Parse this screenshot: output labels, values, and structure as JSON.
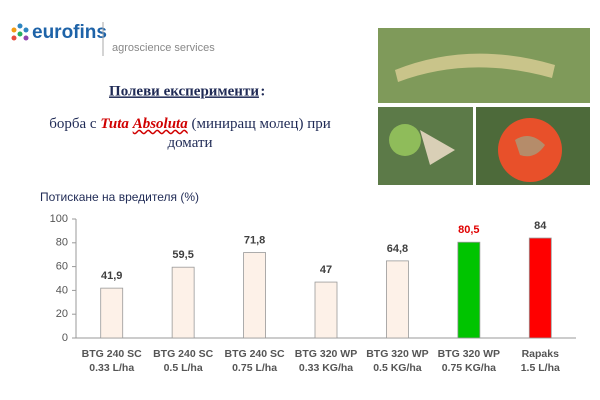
{
  "header": {
    "brand": "eurofins",
    "division": "agroscience services",
    "title": "Полеви експерименти",
    "title_suffix": ":",
    "subtitle": [
      "борба с ",
      "Tuta",
      "Absoluta",
      " (миниращ молец) при домати"
    ]
  },
  "chart_data": {
    "type": "bar",
    "title": "Потискане на вредителя (%)",
    "categories": [
      [
        "BTG 240 SC",
        "0.33 L/ha"
      ],
      [
        "BTG 240 SC",
        "0.5 L/ha"
      ],
      [
        "BTG 240 SC",
        "0.75 L/ha"
      ],
      [
        "BTG 320 WP",
        "0.33 KG/ha"
      ],
      [
        "BTG 320 WP",
        "0.5 KG/ha"
      ],
      [
        "BTG 320 WP",
        "0.75 KG/ha"
      ],
      [
        "Rapaks",
        "1.5 L/ha"
      ]
    ],
    "values": [
      41.9,
      59.5,
      71.8,
      47,
      64.8,
      80.5,
      84
    ],
    "value_labels": [
      "41,9",
      "59,5",
      "71,8",
      "47",
      "64,8",
      "80,5",
      "84"
    ],
    "colors": [
      "#fdf1e8",
      "#fdf1e8",
      "#fdf1e8",
      "#fdf1e8",
      "#fdf1e8",
      "#00c400",
      "#ff0000"
    ],
    "value_label_colors": [
      "#404040",
      "#404040",
      "#404040",
      "#404040",
      "#404040",
      "#e00000",
      "#404040"
    ],
    "ylim": [
      0,
      100
    ],
    "yticks": [
      0,
      20,
      40,
      60,
      80,
      100
    ],
    "grid": false
  }
}
